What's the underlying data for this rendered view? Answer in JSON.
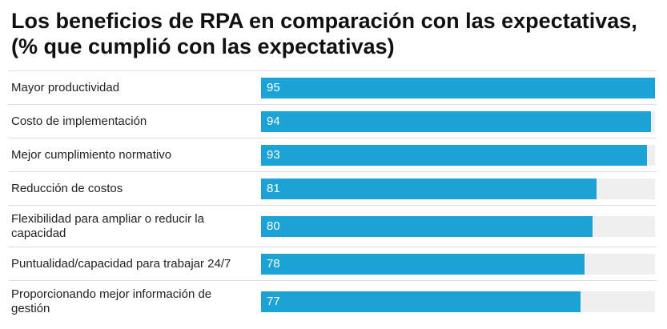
{
  "title": "Los beneficios de RPA en comparación con las expectativas, (% que cumplió con las expectativas)",
  "colors": {
    "bar": "#1aa3d4",
    "track": "#efefef"
  },
  "chart_data": {
    "type": "bar",
    "orientation": "horizontal",
    "title": "Los beneficios de RPA en comparación con las expectativas, (% que cumplió con las expectativas)",
    "xlabel": "",
    "ylabel": "",
    "xlim": [
      0,
      95
    ],
    "categories": [
      "Mayor productividad",
      "Costo de implementación",
      "Mejor cumplimiento normativo",
      "Reducción de costos",
      "Flexibilidad para ampliar o reducir la capacidad",
      "Puntualidad/capacidad para trabajar 24/7",
      "Proporcionando mejor información de gestión"
    ],
    "values": [
      95,
      94,
      93,
      81,
      80,
      78,
      77
    ]
  }
}
